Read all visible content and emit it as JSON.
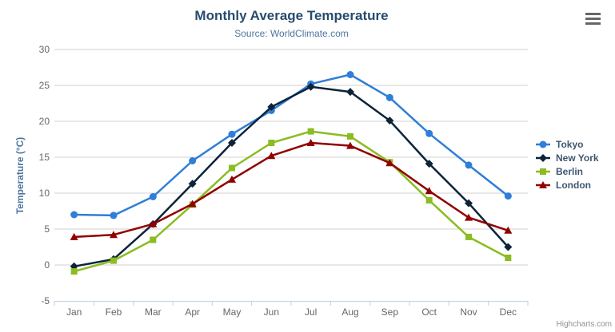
{
  "chart_data": {
    "type": "line",
    "title": "Monthly Average Temperature",
    "subtitle": "Source: WorldClimate.com",
    "categories": [
      "Jan",
      "Feb",
      "Mar",
      "Apr",
      "May",
      "Jun",
      "Jul",
      "Aug",
      "Sep",
      "Oct",
      "Nov",
      "Dec"
    ],
    "series": [
      {
        "name": "Tokyo",
        "color": "#2f7ed8",
        "marker": "circle",
        "values": [
          7.0,
          6.9,
          9.5,
          14.5,
          18.2,
          21.5,
          25.2,
          26.5,
          23.3,
          18.3,
          13.9,
          9.6
        ]
      },
      {
        "name": "New York",
        "color": "#0d233a",
        "marker": "diamond",
        "values": [
          -0.2,
          0.8,
          5.7,
          11.3,
          17.0,
          22.0,
          24.8,
          24.1,
          20.1,
          14.1,
          8.6,
          2.5
        ]
      },
      {
        "name": "Berlin",
        "color": "#8bbc21",
        "marker": "square",
        "values": [
          -0.9,
          0.6,
          3.5,
          8.4,
          13.5,
          17.0,
          18.6,
          17.9,
          14.3,
          9.0,
          3.9,
          1.0
        ]
      },
      {
        "name": "London",
        "color": "#910000",
        "marker": "triangle",
        "values": [
          3.9,
          4.2,
          5.7,
          8.5,
          11.9,
          15.2,
          17.0,
          16.6,
          14.2,
          10.3,
          6.6,
          4.8
        ]
      }
    ],
    "xlabel": "",
    "ylabel": "Temperature (°C)",
    "ylim": [
      -5,
      30
    ],
    "ytick_interval": 5,
    "yticks": [
      -5,
      0,
      5,
      10,
      15,
      20,
      25,
      30
    ],
    "grid": true,
    "legend_position": "right"
  },
  "icons": {
    "context_menu": "hamburger-icon"
  },
  "credits": {
    "label": "Highcharts.com"
  },
  "colors": {
    "title": "#274b6d",
    "subtitle": "#4d759e",
    "axis_title": "#4d759e",
    "tick_label": "#666666",
    "grid": "#d0d0d0",
    "axis_line": "#c0d0e0",
    "legend_text": "#3e576f",
    "credits": "#909090",
    "menu_icon": "#666666"
  }
}
